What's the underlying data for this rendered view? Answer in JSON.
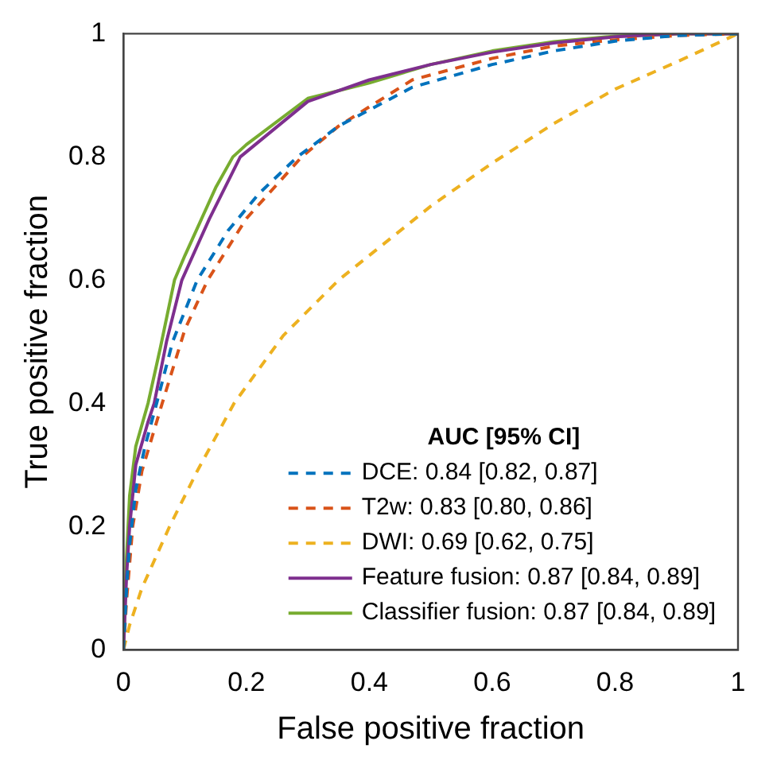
{
  "chart_data": {
    "type": "line",
    "xlabel": "False positive fraction",
    "ylabel": "True positive fraction",
    "legend_title": "AUC [95% CI]",
    "legend": "bottom right",
    "grid": false,
    "marker": "none",
    "xlim": [
      0,
      1
    ],
    "ylim": [
      0,
      1
    ],
    "xticks": [
      0,
      0.2,
      0.4,
      0.6,
      0.8,
      1
    ],
    "yticks": [
      0,
      0.2,
      0.4,
      0.6,
      0.8,
      1
    ],
    "series": [
      {
        "name": "DCE: 0.84 [0.82, 0.87]",
        "color": "#0072bd",
        "line_style": "dashed",
        "x": [
          0,
          0.005,
          0.01,
          0.02,
          0.035,
          0.054,
          0.08,
          0.12,
          0.17,
          0.22,
          0.283,
          0.35,
          0.47,
          0.6,
          0.7,
          0.8,
          0.9,
          1
        ],
        "values": [
          0,
          0.1,
          0.17,
          0.26,
          0.33,
          0.4,
          0.5,
          0.6,
          0.68,
          0.74,
          0.8,
          0.85,
          0.913,
          0.95,
          0.972,
          0.988,
          0.997,
          1
        ]
      },
      {
        "name": "T2w: 0.83 [0.80, 0.86]",
        "color": "#d95319",
        "line_style": "dashed",
        "x": [
          0,
          0.005,
          0.015,
          0.03,
          0.063,
          0.1,
          0.137,
          0.2,
          0.29,
          0.35,
          0.47,
          0.6,
          0.7,
          0.8,
          0.9,
          1
        ],
        "values": [
          0,
          0.08,
          0.2,
          0.29,
          0.4,
          0.52,
          0.6,
          0.7,
          0.8,
          0.85,
          0.925,
          0.96,
          0.98,
          0.99,
          0.997,
          1
        ]
      },
      {
        "name": "DWI: 0.69 [0.62, 0.75]",
        "color": "#edb120",
        "line_style": "dashed",
        "x": [
          0,
          0.01,
          0.03,
          0.075,
          0.12,
          0.18,
          0.26,
          0.35,
          0.5,
          0.6,
          0.7,
          0.8,
          0.9,
          1
        ],
        "values": [
          0,
          0.04,
          0.1,
          0.2,
          0.29,
          0.4,
          0.51,
          0.6,
          0.72,
          0.79,
          0.854,
          0.91,
          0.954,
          1
        ]
      },
      {
        "name": "Feature fusion: 0.87 [0.84, 0.89]",
        "color": "#7e2f8e",
        "line_style": "solid",
        "x": [
          0,
          0.005,
          0.01,
          0.02,
          0.04,
          0.05,
          0.07,
          0.095,
          0.14,
          0.19,
          0.3,
          0.4,
          0.5,
          0.6,
          0.7,
          0.8,
          0.9,
          1
        ],
        "values": [
          0,
          0.12,
          0.2,
          0.3,
          0.37,
          0.4,
          0.5,
          0.6,
          0.7,
          0.8,
          0.89,
          0.925,
          0.95,
          0.97,
          0.985,
          0.995,
          1,
          1
        ]
      },
      {
        "name": "Classifier fusion: 0.87 [0.84, 0.89]",
        "color": "#77ac30",
        "line_style": "solid",
        "x": [
          0,
          0.005,
          0.01,
          0.02,
          0.04,
          0.06,
          0.083,
          0.1,
          0.15,
          0.178,
          0.2,
          0.3,
          0.4,
          0.5,
          0.6,
          0.7,
          0.8,
          0.9,
          1
        ],
        "values": [
          0,
          0.15,
          0.25,
          0.33,
          0.4,
          0.49,
          0.6,
          0.64,
          0.75,
          0.8,
          0.82,
          0.895,
          0.92,
          0.95,
          0.972,
          0.987,
          0.996,
          1,
          1
        ]
      }
    ]
  }
}
